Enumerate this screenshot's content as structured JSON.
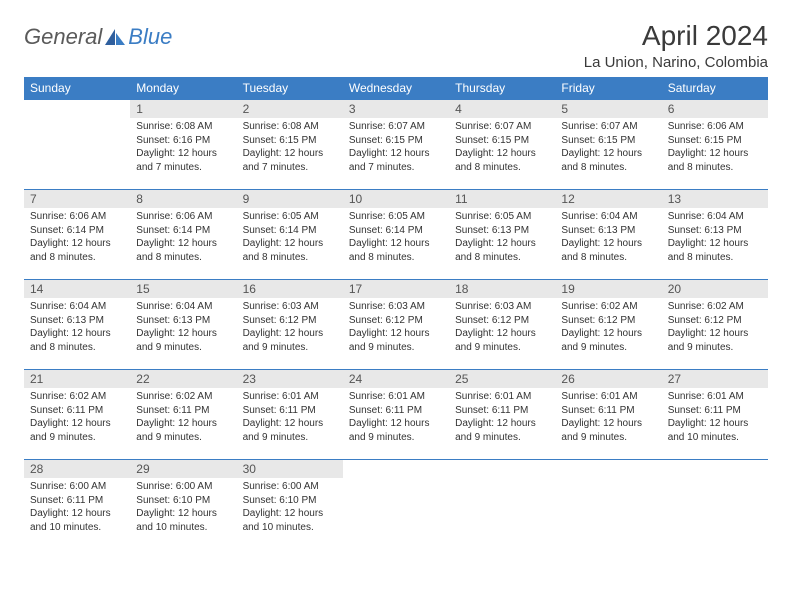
{
  "brand": {
    "general": "General",
    "blue": "Blue"
  },
  "title": "April 2024",
  "location": "La Union, Narino, Colombia",
  "colors": {
    "header_bg": "#3b7dc4",
    "header_text": "#ffffff",
    "daynum_bg": "#e8e8e8",
    "daynum_text": "#555555",
    "body_text": "#333333",
    "rule": "#3b7dc4"
  },
  "weekdays": [
    "Sunday",
    "Monday",
    "Tuesday",
    "Wednesday",
    "Thursday",
    "Friday",
    "Saturday"
  ],
  "weeks": [
    [
      null,
      {
        "n": "1",
        "sr": "Sunrise: 6:08 AM",
        "ss": "Sunset: 6:16 PM",
        "d1": "Daylight: 12 hours",
        "d2": "and 7 minutes."
      },
      {
        "n": "2",
        "sr": "Sunrise: 6:08 AM",
        "ss": "Sunset: 6:15 PM",
        "d1": "Daylight: 12 hours",
        "d2": "and 7 minutes."
      },
      {
        "n": "3",
        "sr": "Sunrise: 6:07 AM",
        "ss": "Sunset: 6:15 PM",
        "d1": "Daylight: 12 hours",
        "d2": "and 7 minutes."
      },
      {
        "n": "4",
        "sr": "Sunrise: 6:07 AM",
        "ss": "Sunset: 6:15 PM",
        "d1": "Daylight: 12 hours",
        "d2": "and 8 minutes."
      },
      {
        "n": "5",
        "sr": "Sunrise: 6:07 AM",
        "ss": "Sunset: 6:15 PM",
        "d1": "Daylight: 12 hours",
        "d2": "and 8 minutes."
      },
      {
        "n": "6",
        "sr": "Sunrise: 6:06 AM",
        "ss": "Sunset: 6:15 PM",
        "d1": "Daylight: 12 hours",
        "d2": "and 8 minutes."
      }
    ],
    [
      {
        "n": "7",
        "sr": "Sunrise: 6:06 AM",
        "ss": "Sunset: 6:14 PM",
        "d1": "Daylight: 12 hours",
        "d2": "and 8 minutes."
      },
      {
        "n": "8",
        "sr": "Sunrise: 6:06 AM",
        "ss": "Sunset: 6:14 PM",
        "d1": "Daylight: 12 hours",
        "d2": "and 8 minutes."
      },
      {
        "n": "9",
        "sr": "Sunrise: 6:05 AM",
        "ss": "Sunset: 6:14 PM",
        "d1": "Daylight: 12 hours",
        "d2": "and 8 minutes."
      },
      {
        "n": "10",
        "sr": "Sunrise: 6:05 AM",
        "ss": "Sunset: 6:14 PM",
        "d1": "Daylight: 12 hours",
        "d2": "and 8 minutes."
      },
      {
        "n": "11",
        "sr": "Sunrise: 6:05 AM",
        "ss": "Sunset: 6:13 PM",
        "d1": "Daylight: 12 hours",
        "d2": "and 8 minutes."
      },
      {
        "n": "12",
        "sr": "Sunrise: 6:04 AM",
        "ss": "Sunset: 6:13 PM",
        "d1": "Daylight: 12 hours",
        "d2": "and 8 minutes."
      },
      {
        "n": "13",
        "sr": "Sunrise: 6:04 AM",
        "ss": "Sunset: 6:13 PM",
        "d1": "Daylight: 12 hours",
        "d2": "and 8 minutes."
      }
    ],
    [
      {
        "n": "14",
        "sr": "Sunrise: 6:04 AM",
        "ss": "Sunset: 6:13 PM",
        "d1": "Daylight: 12 hours",
        "d2": "and 8 minutes."
      },
      {
        "n": "15",
        "sr": "Sunrise: 6:04 AM",
        "ss": "Sunset: 6:13 PM",
        "d1": "Daylight: 12 hours",
        "d2": "and 9 minutes."
      },
      {
        "n": "16",
        "sr": "Sunrise: 6:03 AM",
        "ss": "Sunset: 6:12 PM",
        "d1": "Daylight: 12 hours",
        "d2": "and 9 minutes."
      },
      {
        "n": "17",
        "sr": "Sunrise: 6:03 AM",
        "ss": "Sunset: 6:12 PM",
        "d1": "Daylight: 12 hours",
        "d2": "and 9 minutes."
      },
      {
        "n": "18",
        "sr": "Sunrise: 6:03 AM",
        "ss": "Sunset: 6:12 PM",
        "d1": "Daylight: 12 hours",
        "d2": "and 9 minutes."
      },
      {
        "n": "19",
        "sr": "Sunrise: 6:02 AM",
        "ss": "Sunset: 6:12 PM",
        "d1": "Daylight: 12 hours",
        "d2": "and 9 minutes."
      },
      {
        "n": "20",
        "sr": "Sunrise: 6:02 AM",
        "ss": "Sunset: 6:12 PM",
        "d1": "Daylight: 12 hours",
        "d2": "and 9 minutes."
      }
    ],
    [
      {
        "n": "21",
        "sr": "Sunrise: 6:02 AM",
        "ss": "Sunset: 6:11 PM",
        "d1": "Daylight: 12 hours",
        "d2": "and 9 minutes."
      },
      {
        "n": "22",
        "sr": "Sunrise: 6:02 AM",
        "ss": "Sunset: 6:11 PM",
        "d1": "Daylight: 12 hours",
        "d2": "and 9 minutes."
      },
      {
        "n": "23",
        "sr": "Sunrise: 6:01 AM",
        "ss": "Sunset: 6:11 PM",
        "d1": "Daylight: 12 hours",
        "d2": "and 9 minutes."
      },
      {
        "n": "24",
        "sr": "Sunrise: 6:01 AM",
        "ss": "Sunset: 6:11 PM",
        "d1": "Daylight: 12 hours",
        "d2": "and 9 minutes."
      },
      {
        "n": "25",
        "sr": "Sunrise: 6:01 AM",
        "ss": "Sunset: 6:11 PM",
        "d1": "Daylight: 12 hours",
        "d2": "and 9 minutes."
      },
      {
        "n": "26",
        "sr": "Sunrise: 6:01 AM",
        "ss": "Sunset: 6:11 PM",
        "d1": "Daylight: 12 hours",
        "d2": "and 9 minutes."
      },
      {
        "n": "27",
        "sr": "Sunrise: 6:01 AM",
        "ss": "Sunset: 6:11 PM",
        "d1": "Daylight: 12 hours",
        "d2": "and 10 minutes."
      }
    ],
    [
      {
        "n": "28",
        "sr": "Sunrise: 6:00 AM",
        "ss": "Sunset: 6:11 PM",
        "d1": "Daylight: 12 hours",
        "d2": "and 10 minutes."
      },
      {
        "n": "29",
        "sr": "Sunrise: 6:00 AM",
        "ss": "Sunset: 6:10 PM",
        "d1": "Daylight: 12 hours",
        "d2": "and 10 minutes."
      },
      {
        "n": "30",
        "sr": "Sunrise: 6:00 AM",
        "ss": "Sunset: 6:10 PM",
        "d1": "Daylight: 12 hours",
        "d2": "and 10 minutes."
      },
      null,
      null,
      null,
      null
    ]
  ]
}
